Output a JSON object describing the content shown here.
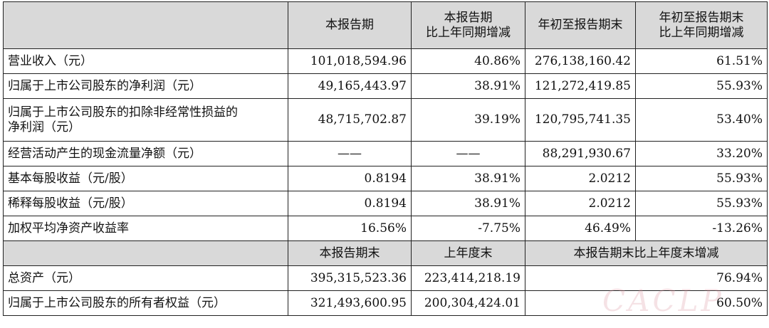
{
  "table": {
    "header": {
      "col1": "本报告期",
      "col2_line1": "本报告期",
      "col2_line2": "比上年同期增减",
      "col3": "年初至报告期末",
      "col4_line1": "年初至报告期末",
      "col4_line2": "比上年同期增减"
    },
    "rows": [
      {
        "label": "营业收入（元）",
        "v1": "101,018,594.96",
        "v2": "40.86%",
        "v3": "276,138,160.42",
        "v4": "61.51%"
      },
      {
        "label": "归属于上市公司股东的净利润（元）",
        "v1": "49,165,443.97",
        "v2": "38.91%",
        "v3": "121,272,419.85",
        "v4": "55.93%"
      },
      {
        "label_line1": "归属于上市公司股东的扣除非经常性损益的",
        "label_line2": "净利润（元）",
        "v1": "48,715,702.87",
        "v2": "39.19%",
        "v3": "120,795,741.35",
        "v4": "53.40%"
      },
      {
        "label": "经营活动产生的现金流量净额（元）",
        "v1": "——",
        "v2": "——",
        "v3": "88,291,930.67",
        "v4": "33.20%"
      },
      {
        "label": "基本每股收益（元/股）",
        "v1": "0.8194",
        "v2": "38.91%",
        "v3": "2.0212",
        "v4": "55.93%"
      },
      {
        "label": "稀释每股收益（元/股）",
        "v1": "0.8194",
        "v2": "38.91%",
        "v3": "2.0212",
        "v4": "55.93%"
      },
      {
        "label": "加权平均净资产收益率",
        "v1": "16.56%",
        "v2": "-7.75%",
        "v3": "46.49%",
        "v4": "-13.26%"
      }
    ],
    "header2": {
      "col1": "本报告期末",
      "col2": "上年度末",
      "col34": "本报告期末比上年度末增减"
    },
    "rows2": [
      {
        "label": "总资产（元）",
        "v1": "395,315,523.36",
        "v2": "223,414,218.19",
        "v3": "76.94%"
      },
      {
        "label": "归属于上市公司股东的所有者权益（元）",
        "v1": "321,493,600.95",
        "v2": "200,304,424.01",
        "v3": "60.50%"
      }
    ]
  },
  "watermark": "CACLP",
  "colors": {
    "header_bg": "#d9d9d9",
    "border": "#222222",
    "text": "#111111"
  }
}
